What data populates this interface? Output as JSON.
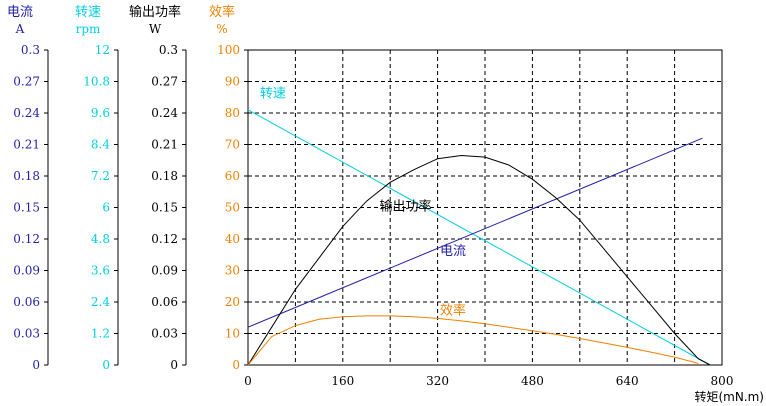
{
  "chart_data": {
    "type": "line",
    "xlabel": "转矩(mN.m)",
    "x_ticks": [
      0,
      160,
      320,
      480,
      640,
      800
    ],
    "xlim": [
      0,
      800
    ],
    "grid": true,
    "axes": [
      {
        "name": "电流",
        "unit": "A",
        "color": "#1f1fa8",
        "ticks": [
          "0",
          "0.03",
          "0.06",
          "0.09",
          "0.12",
          "0.15",
          "0.18",
          "0.21",
          "0.24",
          "0.27",
          "0.3"
        ]
      },
      {
        "name": "转速",
        "unit": "rpm",
        "color": "#00d0e0",
        "ticks": [
          "0",
          "1.2",
          "2.4",
          "3.6",
          "4.8",
          "6",
          "7.2",
          "8.4",
          "9.6",
          "10.8",
          "12"
        ]
      },
      {
        "name": "输出功率",
        "unit": "W",
        "color": "#000000",
        "ticks": [
          "0",
          "0.03",
          "0.06",
          "0.09",
          "0.12",
          "0.15",
          "0.18",
          "0.21",
          "0.24",
          "0.27",
          "0.3"
        ]
      },
      {
        "name": "效率",
        "unit": "%",
        "color": "#f08000",
        "ticks": [
          "0",
          "10",
          "20",
          "30",
          "40",
          "50",
          "60",
          "70",
          "80",
          "90",
          "100"
        ]
      }
    ],
    "ylim": [
      0,
      100
    ],
    "series": [
      {
        "name": "转速",
        "color": "#00d0e0",
        "label_at": [
          20,
          85
        ],
        "x": [
          0,
          780
        ],
        "y": [
          81,
          0
        ]
      },
      {
        "name": "电流",
        "color": "#1f1fa8",
        "label_at": [
          324,
          35
        ],
        "x": [
          0,
          767
        ],
        "y": [
          12,
          72
        ]
      },
      {
        "name": "输出功率",
        "color": "#000000",
        "label_at": [
          222,
          49
        ],
        "x": [
          0,
          40,
          80,
          120,
          160,
          200,
          240,
          280,
          320,
          360,
          400,
          440,
          480,
          520,
          560,
          600,
          640,
          680,
          720,
          760,
          780
        ],
        "y": [
          0,
          12,
          24,
          34,
          44,
          52,
          58,
          62,
          65.5,
          66.5,
          66,
          63.5,
          59,
          53,
          46,
          37,
          28,
          19,
          10,
          2,
          0
        ]
      },
      {
        "name": "效率",
        "color": "#f08000",
        "label_at": [
          324,
          16
        ],
        "x": [
          0,
          40,
          80,
          120,
          160,
          200,
          240,
          280,
          320,
          360,
          400,
          440,
          480,
          520,
          560,
          600,
          640,
          680,
          720,
          760
        ],
        "y": [
          0,
          9,
          12.5,
          14.5,
          15.3,
          15.6,
          15.6,
          15.3,
          14.8,
          14,
          13.1,
          12,
          10.9,
          9.7,
          8.4,
          7,
          5.6,
          4.1,
          2.5,
          0.5
        ]
      }
    ]
  }
}
